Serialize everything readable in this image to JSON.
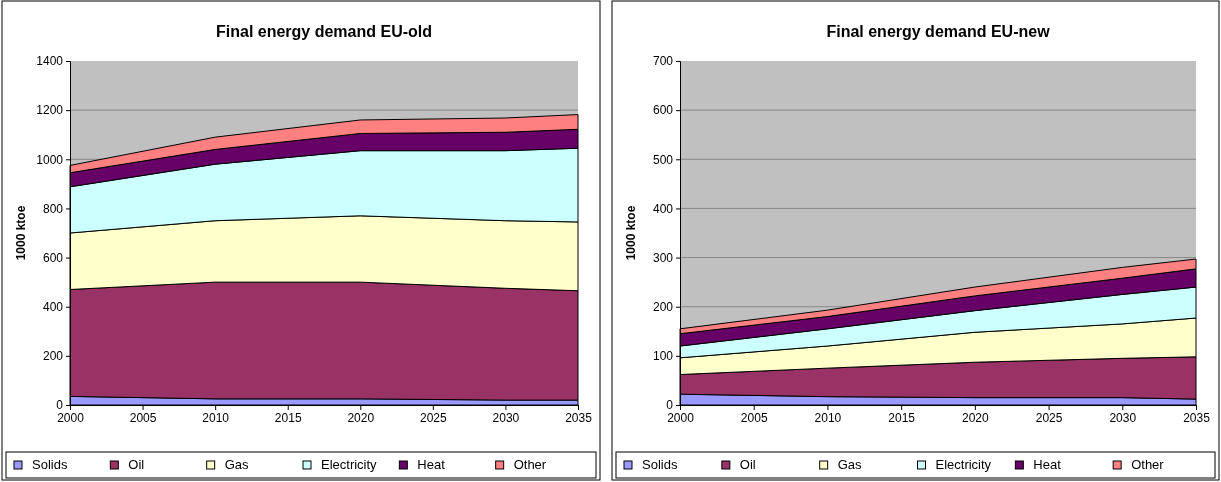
{
  "chart_data": [
    {
      "type": "area",
      "stacked": true,
      "title": "Final energy demand EU-old",
      "ylabel": "1000 ktoe",
      "x": [
        2000,
        2010,
        2020,
        2030,
        2035
      ],
      "xlim": [
        2000,
        2035
      ],
      "xticks": [
        2000,
        2005,
        2010,
        2015,
        2020,
        2025,
        2030,
        2035
      ],
      "ylim": [
        0,
        1400
      ],
      "yticks": [
        0,
        200,
        400,
        600,
        800,
        1000,
        1200,
        1400
      ],
      "grid": "y",
      "legend": "bottom",
      "series": [
        {
          "name": "Solids",
          "color": "#9999ff",
          "values": [
            35,
            25,
            25,
            20,
            20
          ]
        },
        {
          "name": "Oil",
          "color": "#993366",
          "values": [
            435,
            475,
            475,
            455,
            445
          ]
        },
        {
          "name": "Gas",
          "color": "#ffffcc",
          "values": [
            230,
            250,
            270,
            275,
            280
          ]
        },
        {
          "name": "Electricity",
          "color": "#ccffff",
          "values": [
            188,
            230,
            265,
            285,
            300
          ]
        },
        {
          "name": "Heat",
          "color": "#660066",
          "values": [
            57,
            60,
            70,
            75,
            77
          ]
        },
        {
          "name": "Other",
          "color": "#ff8080",
          "values": [
            30,
            50,
            55,
            58,
            60
          ]
        }
      ]
    },
    {
      "type": "area",
      "stacked": true,
      "title": "Final energy demand EU-new",
      "ylabel": "1000 ktoe",
      "x": [
        2000,
        2010,
        2020,
        2030,
        2035
      ],
      "xlim": [
        2000,
        2035
      ],
      "xticks": [
        2000,
        2005,
        2010,
        2015,
        2020,
        2025,
        2030,
        2035
      ],
      "ylim": [
        0,
        700
      ],
      "yticks": [
        0,
        100,
        200,
        300,
        400,
        500,
        600,
        700
      ],
      "grid": "y",
      "legend": "bottom",
      "series": [
        {
          "name": "Solids",
          "color": "#9999ff",
          "values": [
            22,
            17,
            15,
            15,
            12
          ]
        },
        {
          "name": "Oil",
          "color": "#993366",
          "values": [
            40,
            58,
            72,
            80,
            86
          ]
        },
        {
          "name": "Gas",
          "color": "#ffffcc",
          "values": [
            34,
            45,
            61,
            70,
            79
          ]
        },
        {
          "name": "Electricity",
          "color": "#ccffff",
          "values": [
            24,
            35,
            44,
            60,
            63
          ]
        },
        {
          "name": "Heat",
          "color": "#660066",
          "values": [
            25,
            25,
            30,
            33,
            37
          ]
        },
        {
          "name": "Other",
          "color": "#ff8080",
          "values": [
            10,
            13,
            18,
            22,
            20
          ]
        }
      ]
    }
  ]
}
